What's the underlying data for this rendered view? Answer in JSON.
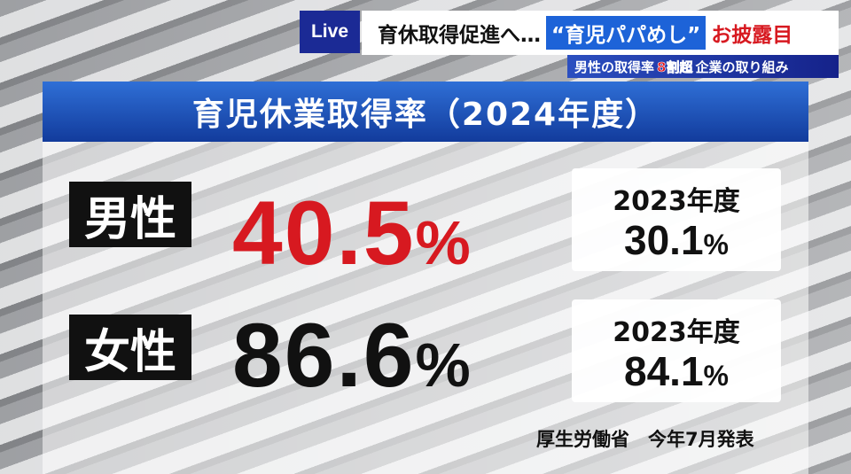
{
  "ticker": {
    "live": "Live",
    "headline_pre": "育休取得促進へ…",
    "headline_highlight": "“育児パパめし”",
    "headline_post": "お披露目",
    "sub_pre": "男性の取得率",
    "sub_red": "8割超",
    "sub_post": "企業の取り組み"
  },
  "graphic": {
    "title": "育児休業取得率（2024年度）",
    "rows": [
      {
        "label": "男性",
        "value": "40.5",
        "unit": "%",
        "color": "#d71920",
        "prev_label": "2023年度",
        "prev_value": "30.1",
        "prev_unit": "%"
      },
      {
        "label": "女性",
        "value": "86.6",
        "unit": "%",
        "color": "#111111",
        "prev_label": "2023年度",
        "prev_value": "84.1",
        "prev_unit": "%"
      }
    ],
    "source": "厚生労働省　今年7月発表"
  },
  "colors": {
    "live_bg": "#1b2a95",
    "title_bg": "#1f55c0",
    "accent_red": "#d71920"
  }
}
